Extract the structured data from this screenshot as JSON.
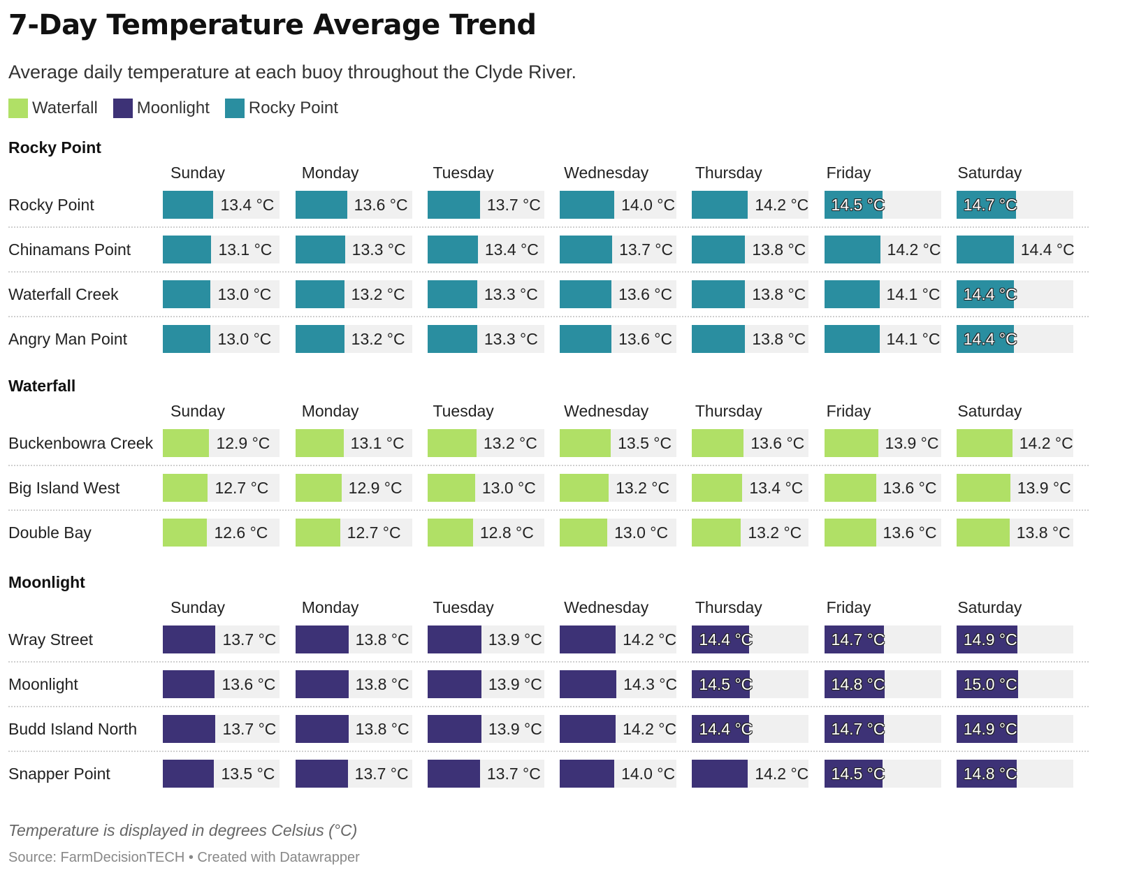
{
  "title": "7-Day Temperature Average Trend",
  "subtitle": "Average daily temperature at each buoy throughout the Clyde River.",
  "legend": [
    {
      "label": "Waterfall",
      "color": "#b0e066"
    },
    {
      "label": "Moonlight",
      "color": "#3d3276"
    },
    {
      "label": "Rocky Point",
      "color": "#2a8ea0"
    }
  ],
  "note": "Temperature is displayed in degrees Celsius (°C)",
  "source": "Source: FarmDecisionTECH • Created with Datawrapper",
  "unit": "°C",
  "chart_data": {
    "type": "bar",
    "title": "7-Day Temperature Average Trend",
    "subtitle": "Average daily temperature at each buoy throughout the Clyde River.",
    "days": [
      "Sunday",
      "Monday",
      "Tuesday",
      "Wednesday",
      "Thursday",
      "Friday",
      "Saturday"
    ],
    "inside_label_threshold": 14.4,
    "groups": [
      {
        "name": "Rocky Point",
        "color": "#2a8ea0",
        "rows": [
          {
            "label": "Rocky Point",
            "values": [
              13.4,
              13.6,
              13.7,
              14.0,
              14.2,
              14.5,
              14.7
            ]
          },
          {
            "label": "Chinamans Point",
            "values": [
              13.1,
              13.3,
              13.4,
              13.7,
              13.8,
              14.2,
              14.4
            ]
          },
          {
            "label": "Waterfall Creek",
            "values": [
              13.0,
              13.2,
              13.3,
              13.6,
              13.8,
              14.1,
              14.4
            ]
          },
          {
            "label": "Angry Man Point",
            "values": [
              13.0,
              13.2,
              13.3,
              13.6,
              13.8,
              14.1,
              14.4
            ]
          }
        ]
      },
      {
        "name": "Waterfall",
        "color": "#b0e066",
        "rows": [
          {
            "label": "Buckenbowra Creek",
            "values": [
              12.9,
              13.1,
              13.2,
              13.5,
              13.6,
              13.9,
              14.2
            ]
          },
          {
            "label": "Big Island West",
            "values": [
              12.7,
              12.9,
              13.0,
              13.2,
              13.4,
              13.6,
              13.9
            ]
          },
          {
            "label": "Double Bay",
            "values": [
              12.6,
              12.7,
              12.8,
              13.0,
              13.2,
              13.6,
              13.8
            ]
          }
        ]
      },
      {
        "name": "Moonlight",
        "color": "#3d3276",
        "rows": [
          {
            "label": "Wray Street",
            "values": [
              13.7,
              13.8,
              13.9,
              14.2,
              14.4,
              14.7,
              14.9
            ]
          },
          {
            "label": "Moonlight",
            "values": [
              13.6,
              13.8,
              13.9,
              14.3,
              14.5,
              14.8,
              15.0
            ]
          },
          {
            "label": "Budd Island North",
            "values": [
              13.7,
              13.8,
              13.9,
              14.2,
              14.4,
              14.7,
              14.9
            ]
          },
          {
            "label": "Snapper Point",
            "values": [
              13.5,
              13.7,
              13.7,
              14.0,
              14.2,
              14.5,
              14.8
            ]
          }
        ]
      }
    ]
  }
}
